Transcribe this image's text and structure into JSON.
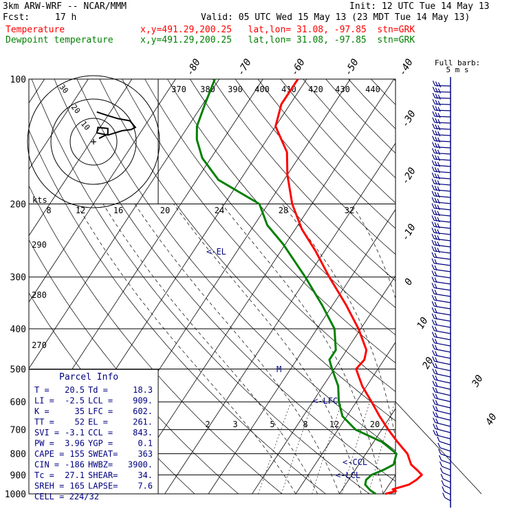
{
  "header": {
    "model": "3km ARW-WRF -- NCAR/MMM",
    "init": "Init: 12 UTC Tue 14 May 13",
    "fcst_label": "Fcst:",
    "fcst_value": "17 h",
    "valid": "Valid: 05 UTC Wed 15 May 13 (23 MDT Tue 14 May 13)",
    "temp_label": "Temperature",
    "temp_info": "x,y=491.29,200.25   lat,lon= 31.08, -97.85  stn=GRK",
    "dew_label": "Dewpoint temperature",
    "dew_info": "x,y=491.29,200.25   lat,lon= 31.08, -97.85  stn=GRK"
  },
  "colors": {
    "temperature": "#ff0000",
    "dewpoint": "#008000",
    "parcel_text": "#000080",
    "wind_barbs": "#000080"
  },
  "chart_data": {
    "type": "line",
    "skew_t": true,
    "pressure_ticks": [
      100,
      200,
      300,
      400,
      500,
      600,
      700,
      800,
      900,
      1000
    ],
    "isotherm_labels_top": [
      "-80",
      "-70",
      "-60",
      "-50",
      "-40"
    ],
    "isotherm_labels_right": [
      "-30",
      "-20",
      "-10",
      "0",
      "10",
      "20",
      "30",
      "40"
    ],
    "theta_labels_top": [
      "370",
      "380",
      "390",
      "400",
      "410",
      "420",
      "430",
      "440"
    ],
    "theta_labels_left": [
      "290",
      "280",
      "270"
    ],
    "mixing_ratio_labels": [
      "2",
      "3",
      "5",
      "8",
      "12",
      "20"
    ],
    "hodograph": {
      "unit_label": "kts",
      "axis_labels": [
        "8",
        "12",
        "16",
        "20",
        "24",
        "28",
        "32"
      ],
      "ring_labels": [
        "10",
        "20",
        "30"
      ],
      "trace": [
        [
          0.5,
          -0.3
        ],
        [
          1.3,
          -0.7
        ],
        [
          1.3,
          -1.2
        ],
        [
          0.4,
          -1.3
        ],
        [
          0.3,
          -0.8
        ],
        [
          1.3,
          -0.6
        ],
        [
          2.6,
          -1.0
        ],
        [
          3.4,
          -1.1
        ],
        [
          3.8,
          -1.3
        ],
        [
          3.3,
          -1.9
        ],
        [
          2.2,
          -2.1
        ],
        [
          1.2,
          -2.4
        ],
        [
          0.3,
          -2.7
        ]
      ]
    },
    "level_markers": [
      "EL",
      "M",
      "LFC",
      "CCL",
      "LCL"
    ],
    "barb_header": "Full barb:",
    "barb_unit": "5 m s",
    "series": [
      {
        "name": "Temperature",
        "points": [
          [
            1000,
            20.5
          ],
          [
            985,
            22.5
          ],
          [
            975,
            21.5
          ],
          [
            950,
            24.5
          ],
          [
            925,
            25.5
          ],
          [
            900,
            26.0
          ],
          [
            880,
            24.5
          ],
          [
            850,
            22.0
          ],
          [
            800,
            19.5
          ],
          [
            750,
            15.5
          ],
          [
            700,
            11.5
          ],
          [
            650,
            7.5
          ],
          [
            600,
            3.5
          ],
          [
            550,
            -1.0
          ],
          [
            500,
            -5.0
          ],
          [
            475,
            -4.5
          ],
          [
            450,
            -5.5
          ],
          [
            400,
            -10.5
          ],
          [
            350,
            -17.0
          ],
          [
            300,
            -25.0
          ],
          [
            260,
            -32.0
          ],
          [
            230,
            -38.5
          ],
          [
            200,
            -44.5
          ],
          [
            170,
            -50.0
          ],
          [
            150,
            -53.5
          ],
          [
            130,
            -60.0
          ],
          [
            115,
            -62.0
          ],
          [
            100,
            -62.0
          ]
        ]
      },
      {
        "name": "Dewpoint temperature",
        "points": [
          [
            1000,
            18.3
          ],
          [
            980,
            16.5
          ],
          [
            950,
            14.5
          ],
          [
            925,
            14.0
          ],
          [
            900,
            14.5
          ],
          [
            875,
            16.5
          ],
          [
            850,
            18.0
          ],
          [
            800,
            17.0
          ],
          [
            750,
            12.0
          ],
          [
            700,
            4.0
          ],
          [
            650,
            -1.0
          ],
          [
            600,
            -4.0
          ],
          [
            550,
            -6.5
          ],
          [
            500,
            -10.5
          ],
          [
            475,
            -12.5
          ],
          [
            450,
            -12.5
          ],
          [
            400,
            -16.0
          ],
          [
            350,
            -22.5
          ],
          [
            300,
            -30.5
          ],
          [
            250,
            -40.5
          ],
          [
            225,
            -47.0
          ],
          [
            200,
            -52.0
          ],
          [
            175,
            -65.0
          ],
          [
            155,
            -72.0
          ],
          [
            140,
            -76.0
          ],
          [
            130,
            -78.0
          ],
          [
            115,
            -79.5
          ],
          [
            100,
            -81.0
          ]
        ]
      }
    ]
  },
  "parcel": {
    "title": "Parcel Info",
    "rows": [
      [
        "T  =",
        "20.5",
        "Td =",
        "18.3"
      ],
      [
        "LI =",
        "-2.5",
        "LCL =",
        "909."
      ],
      [
        "K  =",
        "35",
        "LFC =",
        "602."
      ],
      [
        "TT =",
        "52",
        "EL  =",
        "261."
      ],
      [
        "SVI =",
        "-3.1",
        "CCL =",
        "843."
      ],
      [
        "PW =",
        "3.96",
        "YGP =",
        "0.1"
      ],
      [
        "CAPE =",
        "155",
        "SWEAT=",
        "363"
      ],
      [
        "CIN =",
        "-186",
        "HWBZ=",
        "3900."
      ],
      [
        "Tc =",
        "27.1",
        "SHEAR=",
        "34."
      ],
      [
        "SREH =",
        "165",
        "LAPSE=",
        "7.6"
      ]
    ],
    "cell": "CELL = 224/32"
  }
}
